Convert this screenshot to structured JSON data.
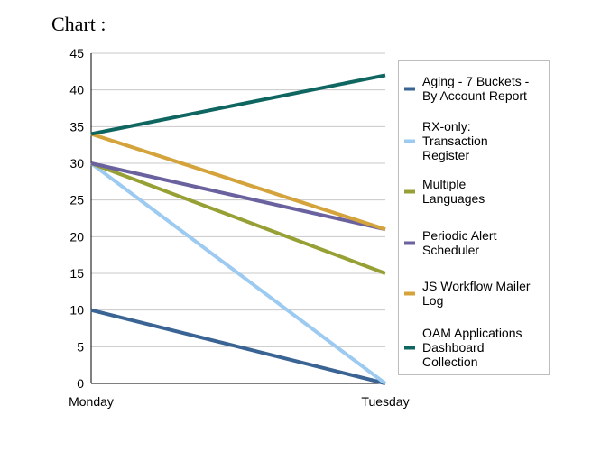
{
  "page": {
    "heading": "Chart :"
  },
  "chart_data": {
    "type": "line",
    "title": "",
    "xlabel": "",
    "ylabel": "",
    "categories": [
      "Monday",
      "Tuesday"
    ],
    "ylim": [
      0,
      45
    ],
    "yticks": [
      0,
      5,
      10,
      15,
      20,
      25,
      30,
      35,
      40,
      45
    ],
    "grid": true,
    "legend": "right",
    "series": [
      {
        "name": "Aging - 7 Buckets - By Account Report",
        "lines": [
          "Aging - 7 Buckets -",
          "By Account Report"
        ],
        "values": [
          10,
          0
        ],
        "color": "#3a6494"
      },
      {
        "name": "RX-only: Transaction Register",
        "lines": [
          "RX-only:",
          "Transaction",
          "Register"
        ],
        "values": [
          30,
          0
        ],
        "color": "#9ccaf0"
      },
      {
        "name": "Multiple Languages",
        "lines": [
          "Multiple",
          "Languages"
        ],
        "values": [
          30,
          15
        ],
        "color": "#97a034"
      },
      {
        "name": "Periodic Alert Scheduler",
        "lines": [
          "Periodic Alert",
          "Scheduler"
        ],
        "values": [
          30,
          21
        ],
        "color": "#6a629e"
      },
      {
        "name": "JS Workflow Mailer Log",
        "lines": [
          "JS Workflow Mailer",
          "Log"
        ],
        "values": [
          34,
          21
        ],
        "color": "#d4a33b"
      },
      {
        "name": "OAM Applications Dashboard Collection",
        "lines": [
          "OAM Applications",
          "Dashboard",
          "Collection"
        ],
        "values": [
          34,
          42
        ],
        "color": "#0f6660"
      }
    ]
  }
}
